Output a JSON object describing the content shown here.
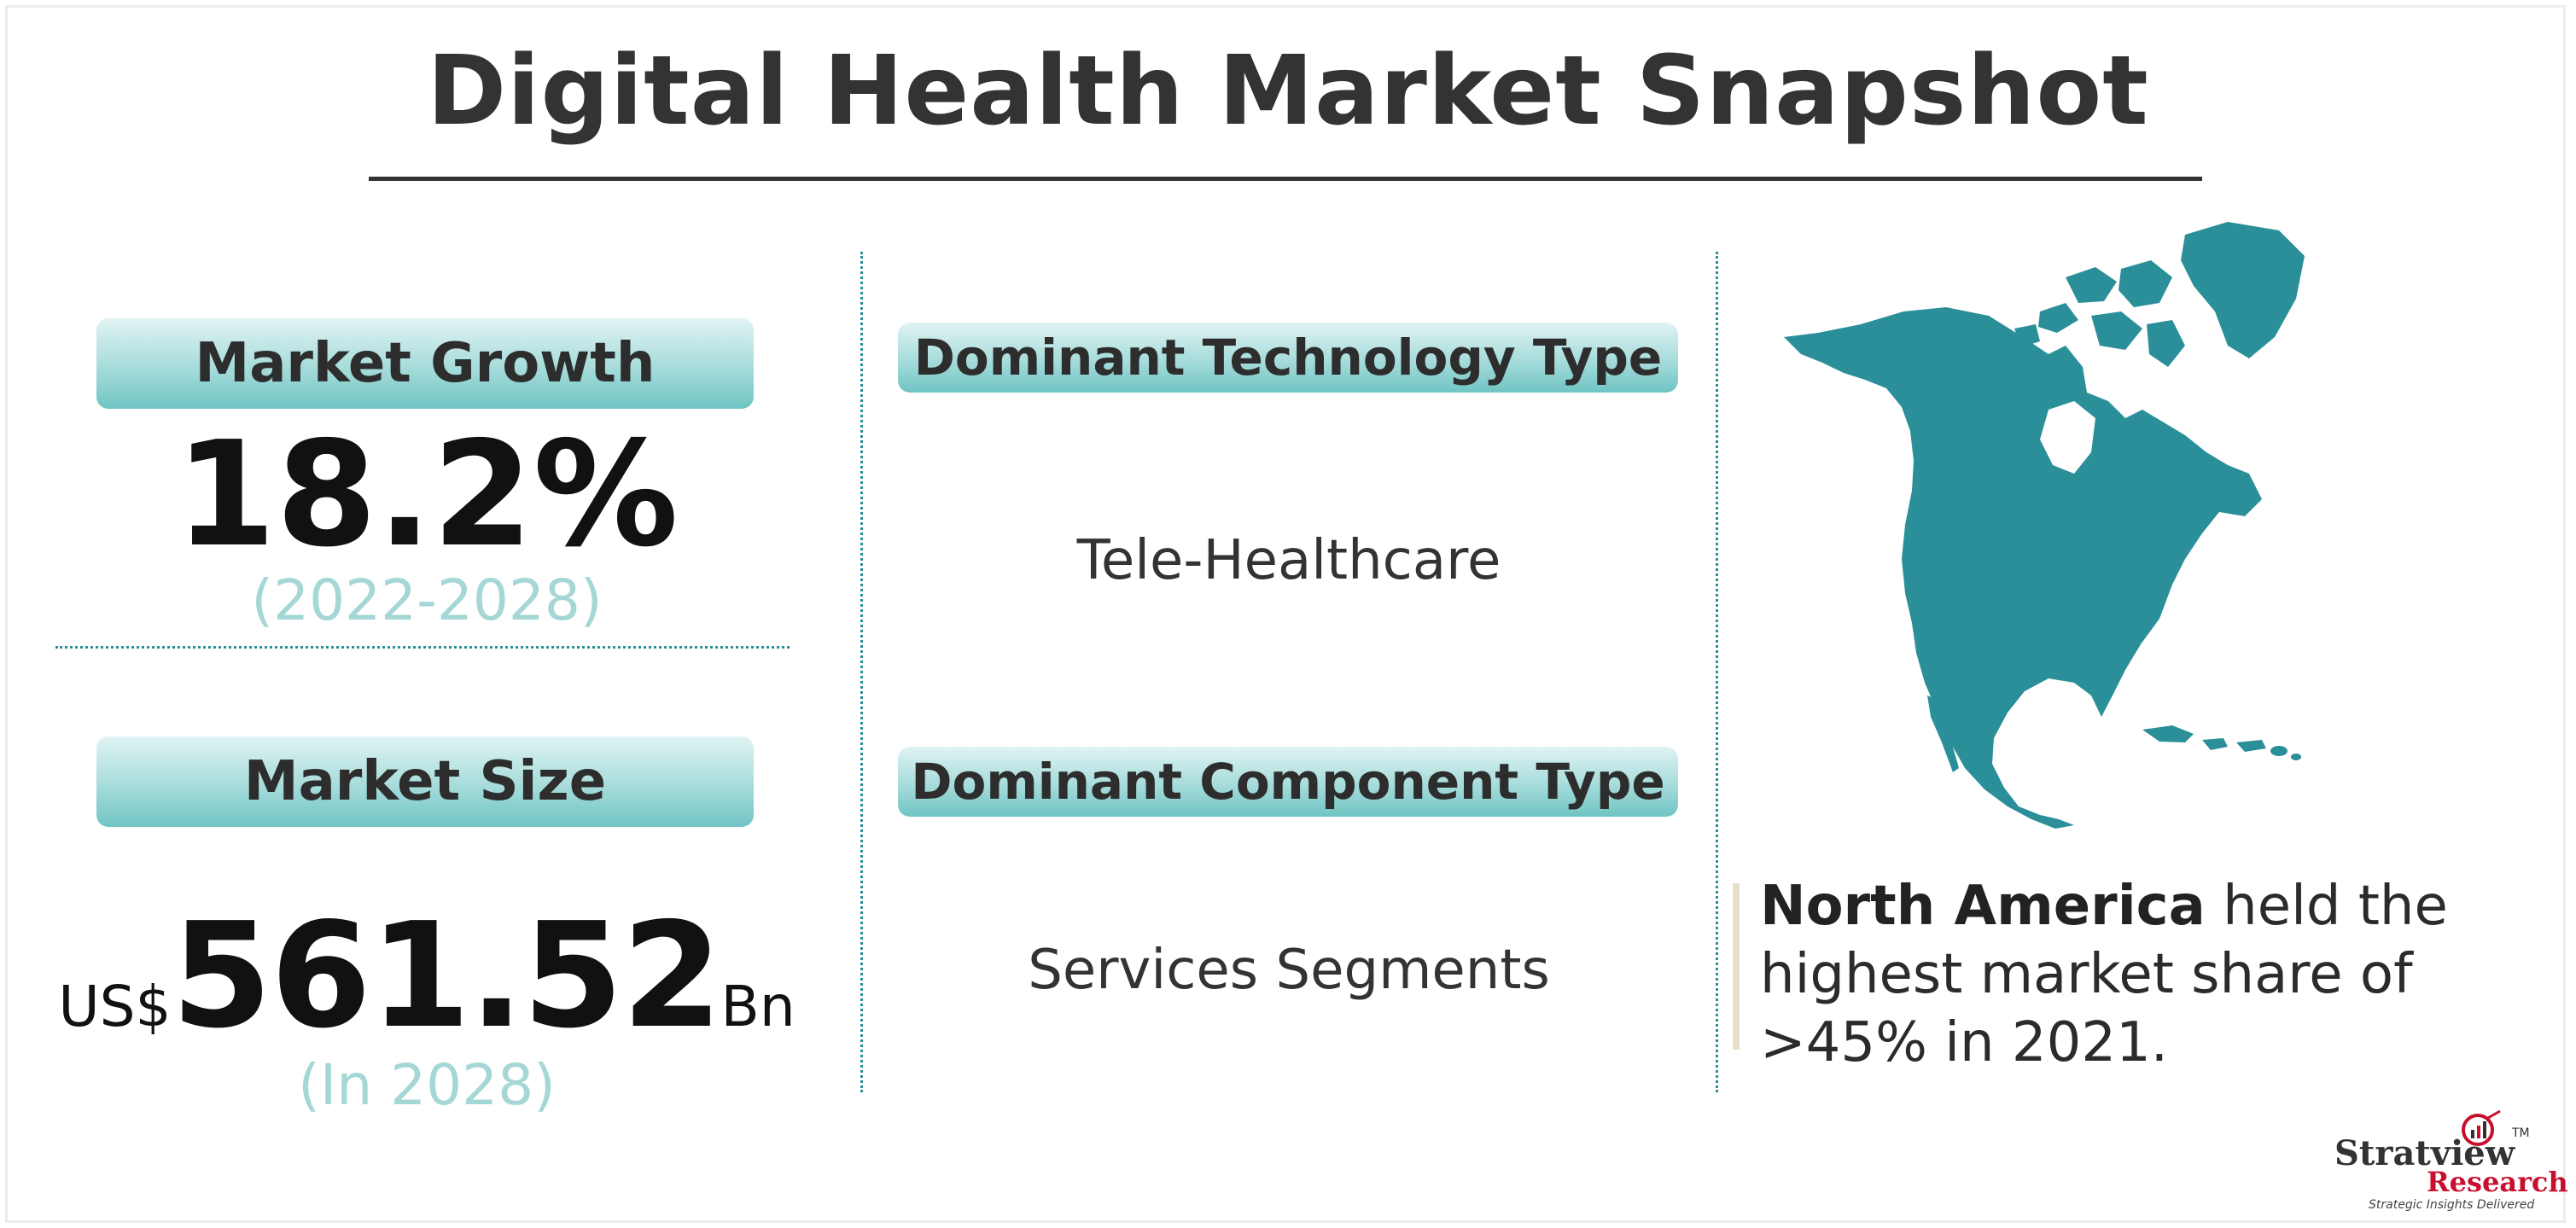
{
  "title": "Digital Health Market Snapshot",
  "market_growth": {
    "label": "Market Growth",
    "value": "18.2%",
    "period": "(2022-2028)"
  },
  "market_size": {
    "label": "Market Size",
    "prefix": "US$",
    "value": "561.52",
    "unit": "Bn",
    "period": "(In 2028)"
  },
  "technology": {
    "label": "Dominant Technology Type",
    "value": "Tele-Healthcare"
  },
  "component": {
    "label": "Dominant Component Type",
    "value": "Services Segments"
  },
  "region": {
    "name": "North America",
    "text_1": " held the",
    "text_2": "highest market share of",
    "text_3": ">45% in 2021."
  },
  "logo": {
    "name": "Stratview",
    "tm": "TM",
    "research": "Research",
    "tagline": "Strategic Insights Delivered"
  },
  "icons": {
    "map": "north-america-map-icon",
    "logo_mark": "magnifier-chart-icon"
  },
  "colors": {
    "accent": "#2a8f98",
    "pill_light": "#e0f3f3",
    "pill_dark": "#6fc4c3",
    "subtext": "#a4d7d6",
    "logo_red": "#c8102e"
  }
}
